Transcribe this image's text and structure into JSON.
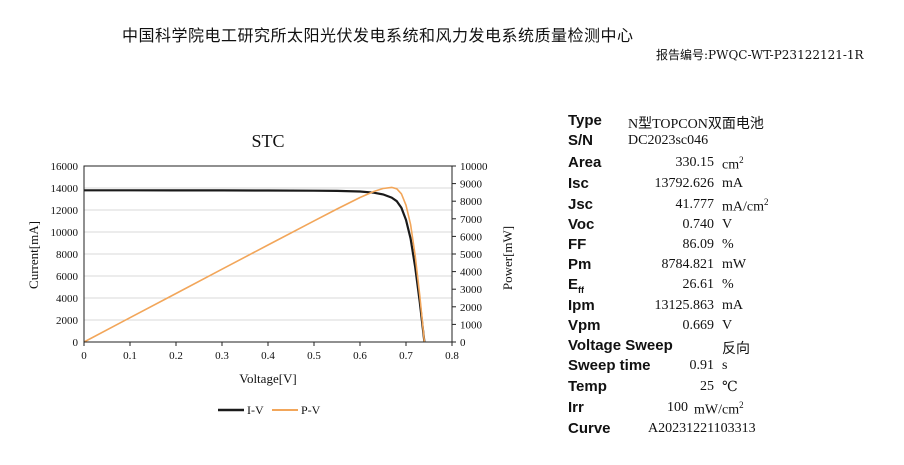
{
  "header": {
    "title": "中国科学院电工研究所太阳光伏发电系统和风力发电系统质量检测中心",
    "report_label": "报告编号:",
    "report_no": "PWQC-WT-P23122121-1R"
  },
  "colors": {
    "iv": "#1a1a1a",
    "pv": "#f2a65a",
    "axis": "#222222",
    "grid": "#d9d9d9"
  },
  "chart_data": {
    "type": "line",
    "title": "STC",
    "xlabel": "Voltage[V]",
    "ylabel": "Current[mA]",
    "y2label": "Power[mW]",
    "xlim": [
      0,
      0.8
    ],
    "ylim": [
      0,
      16000
    ],
    "y2lim": [
      0,
      10000
    ],
    "x_ticks": [
      "0",
      "0.1",
      "0.2",
      "0.3",
      "0.4",
      "0.5",
      "0.6",
      "0.7",
      "0.8"
    ],
    "y_ticks": [
      "0",
      "2000",
      "4000",
      "6000",
      "8000",
      "10000",
      "12000",
      "14000",
      "16000"
    ],
    "y2_ticks": [
      "0",
      "1000",
      "2000",
      "3000",
      "4000",
      "5000",
      "6000",
      "7000",
      "8000",
      "9000",
      "10000"
    ],
    "grid": "horizontal",
    "legend_position": "bottom",
    "series": [
      {
        "name": "I-V",
        "axis": "left",
        "x": [
          0,
          0.1,
          0.2,
          0.3,
          0.4,
          0.5,
          0.55,
          0.6,
          0.63,
          0.65,
          0.669,
          0.68,
          0.69,
          0.7,
          0.71,
          0.72,
          0.73,
          0.74
        ],
        "y": [
          13792,
          13790,
          13785,
          13780,
          13772,
          13755,
          13735,
          13680,
          13570,
          13420,
          13126,
          12800,
          12200,
          11100,
          9400,
          6800,
          3600,
          0
        ]
      },
      {
        "name": "P-V",
        "axis": "right",
        "x": [
          0,
          0.1,
          0.2,
          0.3,
          0.4,
          0.5,
          0.55,
          0.6,
          0.63,
          0.65,
          0.669,
          0.68,
          0.69,
          0.7,
          0.71,
          0.72,
          0.73,
          0.74
        ],
        "y": [
          0,
          1379,
          2757,
          4134,
          5509,
          6878,
          7554,
          8208,
          8549,
          8723,
          8785,
          8704,
          8418,
          7770,
          6674,
          4896,
          2628,
          0
        ]
      }
    ]
  },
  "params": {
    "type": {
      "label": "Type",
      "value": "N型TOPCON双面电池"
    },
    "sn": {
      "label": "S/N",
      "value": "DC2023sc046"
    },
    "area": {
      "label": "Area",
      "value": "330.15",
      "unit": "cm",
      "unit_sup": "2"
    },
    "isc": {
      "label": "Isc",
      "value": "13792.626",
      "unit": "mA"
    },
    "jsc": {
      "label": "Jsc",
      "value": "41.777",
      "unit": "mA/cm",
      "unit_sup": "2"
    },
    "voc": {
      "label": "Voc",
      "value": "0.740",
      "unit": "V"
    },
    "ff": {
      "label": "FF",
      "value": "86.09",
      "unit": "%"
    },
    "pm": {
      "label": "Pm",
      "value": "8784.821",
      "unit": "mW"
    },
    "eff": {
      "label": "E",
      "label_sub": "ff",
      "value": "26.61",
      "unit": "%"
    },
    "ipm": {
      "label": "Ipm",
      "value": "13125.863",
      "unit": "mA"
    },
    "vpm": {
      "label": "Vpm",
      "value": "0.669",
      "unit": "V"
    },
    "sweep_dir": {
      "label": "Voltage Sweep",
      "value": "反向"
    },
    "sweep_time": {
      "label": "Sweep  time",
      "value": "0.91",
      "unit": "s"
    },
    "temp": {
      "label": "Temp",
      "value": "25",
      "unit": "℃"
    },
    "irr": {
      "label": "Irr",
      "value": "100",
      "unit": "mW/cm",
      "unit_sup": "2"
    },
    "curve": {
      "label": "Curve",
      "value": "A20231221103313"
    }
  }
}
